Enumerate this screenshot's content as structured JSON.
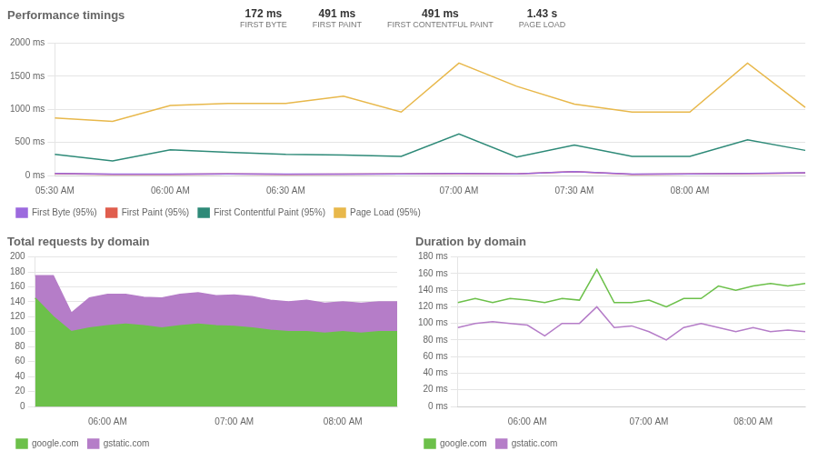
{
  "chart_data": [
    {
      "type": "line",
      "title": "Performance timings",
      "annotations": [
        "172 ms",
        "FIRST BYTE",
        "491 ms",
        "FIRST PAINT",
        "491 ms",
        "FIRST CONTENTFUL PAINT",
        "1.43 s",
        "PAGE LOAD"
      ],
      "categories": [
        "05:30 AM",
        null,
        "06:00 AM",
        null,
        "06:30 AM",
        null,
        null,
        "07:00 AM",
        null,
        "07:30 AM",
        null,
        "08:00 AM",
        null,
        null
      ],
      "series": [
        {
          "name": "First Byte (95%)",
          "color": "#9c6ade",
          "values": [
            30,
            20,
            20,
            25,
            20,
            22,
            25,
            30,
            25,
            60,
            20,
            25,
            30,
            40
          ]
        },
        {
          "name": "First Paint (95%)",
          "color": "#e05e4e",
          "values": [
            28,
            18,
            18,
            23,
            18,
            20,
            23,
            28,
            23,
            58,
            18,
            23,
            28,
            38
          ]
        },
        {
          "name": "First Contentful Paint (95%)",
          "color": "#2e8a78",
          "values": [
            320,
            220,
            390,
            350,
            320,
            310,
            290,
            630,
            280,
            460,
            290,
            290,
            540,
            380
          ]
        },
        {
          "name": "Page Load (95%)",
          "color": "#e8b84b",
          "values": [
            870,
            820,
            1060,
            1090,
            1090,
            1200,
            960,
            1700,
            1350,
            1080,
            960,
            960,
            1700,
            1030
          ]
        }
      ],
      "ylim": [
        0,
        2000
      ],
      "yticks": [
        {
          "value": 0,
          "label": "0 ms"
        },
        {
          "value": 500,
          "label": "500 ms"
        },
        {
          "value": 1000,
          "label": "1000 ms"
        },
        {
          "value": 1500,
          "label": "1500 ms"
        },
        {
          "value": 2000,
          "label": "2000 ms"
        }
      ],
      "grid": true,
      "legend": "bottom"
    },
    {
      "type": "area",
      "title": "Total requests by domain",
      "stacked": true,
      "categories": [
        null,
        null,
        null,
        null,
        "06:00 AM",
        null,
        null,
        null,
        null,
        null,
        null,
        "07:00 AM",
        null,
        null,
        null,
        null,
        null,
        "08:00 AM",
        null,
        null,
        null
      ],
      "series": [
        {
          "name": "google.com",
          "color": "#6cc04a",
          "values": [
            145,
            120,
            100,
            105,
            108,
            110,
            108,
            105,
            108,
            110,
            108,
            107,
            105,
            102,
            100,
            100,
            98,
            100,
            98,
            100,
            100
          ]
        },
        {
          "name": "gstatic.com",
          "color": "#b57dc8",
          "values": [
            30,
            55,
            25,
            40,
            42,
            40,
            38,
            40,
            42,
            42,
            40,
            42,
            42,
            40,
            40,
            42,
            40,
            40,
            40,
            40,
            40
          ]
        }
      ],
      "ylim": [
        0,
        200
      ],
      "yticks": [
        0,
        20,
        40,
        60,
        80,
        100,
        120,
        140,
        160,
        180,
        200
      ],
      "grid": true,
      "legend": "bottom"
    },
    {
      "type": "line",
      "title": "Duration by domain",
      "categories": [
        null,
        null,
        null,
        null,
        "06:00 AM",
        null,
        null,
        null,
        null,
        null,
        null,
        "07:00 AM",
        null,
        null,
        null,
        null,
        null,
        "08:00 AM",
        null,
        null,
        null
      ],
      "series": [
        {
          "name": "google.com",
          "color": "#6cc04a",
          "values": [
            125,
            130,
            125,
            130,
            128,
            125,
            130,
            128,
            165,
            125,
            125,
            128,
            120,
            130,
            130,
            145,
            140,
            145,
            148,
            145,
            148
          ]
        },
        {
          "name": "gstatic.com",
          "color": "#b57dc8",
          "values": [
            95,
            100,
            102,
            100,
            98,
            85,
            100,
            100,
            120,
            95,
            97,
            90,
            80,
            95,
            100,
            95,
            90,
            95,
            90,
            92,
            90
          ]
        }
      ],
      "ylim": [
        0,
        180
      ],
      "yticks": [
        {
          "value": 0,
          "label": "0 ms"
        },
        {
          "value": 20,
          "label": "20 ms"
        },
        {
          "value": 40,
          "label": "40 ms"
        },
        {
          "value": 60,
          "label": "60 ms"
        },
        {
          "value": 80,
          "label": "80 ms"
        },
        {
          "value": 100,
          "label": "100 ms"
        },
        {
          "value": 120,
          "label": "120 ms"
        },
        {
          "value": 140,
          "label": "140 ms"
        },
        {
          "value": 160,
          "label": "160 ms"
        },
        {
          "value": 180,
          "label": "180 ms"
        }
      ],
      "grid": true,
      "legend": "bottom"
    }
  ]
}
